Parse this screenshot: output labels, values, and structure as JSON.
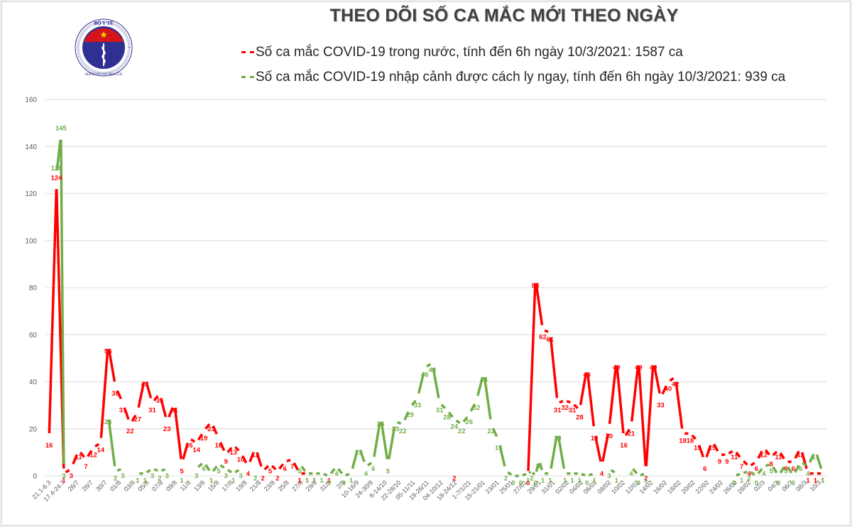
{
  "header": {
    "logo": {
      "top_text": "BỘ Y TẾ",
      "bottom_text": "MINISTRY OF HEALTH"
    },
    "title": "THEO DÕI SỐ CA MẮC MỚI THEO NGÀY"
  },
  "legend": [
    {
      "label": "Số ca mắc COVID-19 trong nước, tính đến 6h ngày 10/3/2021: 1587 ca",
      "color": "#ff0000"
    },
    {
      "label": "Số ca mắc COVID-19 nhập cảnh được cách ly ngay, tính đến 6h ngày 10/3/2021: 939 ca",
      "color": "#70ad47"
    }
  ],
  "chart_data": {
    "type": "line",
    "title": "THEO DÕI SỐ CA MẮC MỚI THEO NGÀY",
    "xlabel": "",
    "ylabel": "",
    "ylim": [
      0,
      160
    ],
    "yticks": [
      0,
      20,
      40,
      60,
      80,
      100,
      120,
      140,
      160
    ],
    "grid": true,
    "legend_position": "top",
    "x_tick_labels": [
      "21.1-6.3",
      "17.4-24.7",
      "26/7",
      "28/7",
      "30/7",
      "01/8",
      "03/8",
      "05/8",
      "07/8",
      "09/8",
      "11/8",
      "13/8",
      "15/8",
      "17/8",
      "19/8",
      "21/8",
      "23/8",
      "25/8",
      "27/8",
      "29/8",
      "31/8",
      "2/9",
      "10-16/9",
      "24-30/9",
      "8-14/10",
      "22-28/10",
      "05-11/11",
      "19-26/11",
      "04-10/12",
      "18-24/12",
      "1-7/1/21",
      "15-21/01",
      "23/01",
      "25/01",
      "27/01",
      "29/01",
      "31/01",
      "02/02",
      "04/02",
      "06/02",
      "08/02",
      "10/02",
      "12/02",
      "14/02",
      "16/02",
      "18/02",
      "20/02",
      "22/02",
      "24/02",
      "26/02",
      "28/02",
      "02/3",
      "04/3",
      "06/3",
      "08/3",
      "10/3"
    ],
    "series": [
      {
        "name": "Số ca mắc COVID-19 trong nước",
        "color": "#ff0000",
        "points": [
          [
            0,
            16
          ],
          [
            1,
            124
          ],
          [
            2,
            1
          ],
          [
            3,
            3
          ],
          [
            4,
            11
          ],
          [
            5,
            7
          ],
          [
            6,
            12
          ],
          [
            7,
            14
          ],
          [
            8,
            56
          ],
          [
            9,
            38
          ],
          [
            10,
            31
          ],
          [
            11,
            22
          ],
          [
            12,
            27
          ],
          [
            13,
            42
          ],
          [
            14,
            31
          ],
          [
            15,
            35
          ],
          [
            16,
            23
          ],
          [
            17,
            31
          ],
          [
            18,
            5
          ],
          [
            19,
            16
          ],
          [
            20,
            14
          ],
          [
            21,
            19
          ],
          [
            22,
            23
          ],
          [
            23,
            16
          ],
          [
            24,
            9
          ],
          [
            25,
            13
          ],
          [
            26,
            10
          ],
          [
            27,
            4
          ],
          [
            28,
            12
          ],
          [
            29,
            2
          ],
          [
            30,
            5
          ],
          [
            31,
            2
          ],
          [
            32,
            6
          ],
          [
            33,
            7
          ],
          [
            34,
            1
          ],
          [
            35,
            1
          ],
          [
            36,
            1
          ],
          [
            38,
            1
          ],
          [
            55,
            2
          ],
          [
            65,
            0
          ],
          [
            66,
            84
          ],
          [
            67,
            62
          ],
          [
            68,
            61
          ],
          [
            69,
            31
          ],
          [
            70,
            32
          ],
          [
            71,
            31
          ],
          [
            72,
            28
          ],
          [
            73,
            46
          ],
          [
            74,
            19
          ],
          [
            75,
            4
          ],
          [
            76,
            20
          ],
          [
            77,
            49
          ],
          [
            78,
            16
          ],
          [
            79,
            21
          ],
          [
            80,
            49
          ],
          [
            81,
            2
          ],
          [
            82,
            49
          ],
          [
            83,
            33
          ],
          [
            84,
            40
          ],
          [
            85,
            42
          ],
          [
            86,
            18
          ],
          [
            87,
            18
          ],
          [
            88,
            15
          ],
          [
            89,
            6
          ],
          [
            90,
            15
          ],
          [
            91,
            9
          ],
          [
            92,
            9
          ],
          [
            93,
            11
          ],
          [
            94,
            7
          ],
          [
            95,
            4
          ],
          [
            96,
            6
          ],
          [
            97,
            12
          ],
          [
            98,
            8
          ],
          [
            99,
            11
          ],
          [
            100,
            6
          ],
          [
            101,
            6
          ],
          [
            102,
            12
          ],
          [
            103,
            1
          ],
          [
            104,
            1
          ],
          [
            105,
            1
          ]
        ]
      },
      {
        "name": "Số ca mắc COVID-19 nhập cảnh được cách ly ngay",
        "color": "#70ad47",
        "points": [
          [
            1,
            128
          ],
          [
            1.6,
            145
          ],
          [
            2,
            3
          ],
          [
            8,
            26
          ],
          [
            9,
            2
          ],
          [
            10,
            3
          ],
          [
            12,
            1
          ],
          [
            13,
            1
          ],
          [
            14,
            3
          ],
          [
            15,
            2
          ],
          [
            16,
            3
          ],
          [
            18,
            1
          ],
          [
            20,
            3
          ],
          [
            21,
            6
          ],
          [
            22,
            1
          ],
          [
            23,
            5
          ],
          [
            24,
            3
          ],
          [
            25,
            1
          ],
          [
            26,
            3
          ],
          [
            28,
            2
          ],
          [
            34,
            5
          ],
          [
            35,
            1
          ],
          [
            36,
            1
          ],
          [
            37,
            1
          ],
          [
            38,
            0
          ],
          [
            39,
            4
          ],
          [
            40,
            0
          ],
          [
            41,
            1
          ],
          [
            42,
            13
          ],
          [
            43,
            4
          ],
          [
            44,
            6
          ],
          [
            45,
            25
          ],
          [
            46,
            5
          ],
          [
            47,
            23
          ],
          [
            48,
            22
          ],
          [
            49,
            29
          ],
          [
            50,
            33
          ],
          [
            51,
            46
          ],
          [
            52,
            48
          ],
          [
            53,
            31
          ],
          [
            54,
            28
          ],
          [
            55,
            24
          ],
          [
            56,
            22
          ],
          [
            57,
            26
          ],
          [
            58,
            32
          ],
          [
            59,
            44
          ],
          [
            60,
            22
          ],
          [
            61,
            15
          ],
          [
            62,
            2
          ],
          [
            63,
            0
          ],
          [
            64,
            0
          ],
          [
            65,
            1
          ],
          [
            65.5,
            2
          ],
          [
            66,
            0
          ],
          [
            66.5,
            7
          ],
          [
            67,
            1
          ],
          [
            68,
            1
          ],
          [
            69,
            19
          ],
          [
            70,
            1
          ],
          [
            71,
            1
          ],
          [
            72,
            1
          ],
          [
            73,
            0
          ],
          [
            74,
            1
          ],
          [
            76,
            3
          ],
          [
            77,
            1
          ],
          [
            79,
            4
          ],
          [
            80,
            0
          ],
          [
            81,
            1
          ],
          [
            93,
            0
          ],
          [
            94,
            1
          ],
          [
            95,
            2
          ],
          [
            96,
            0
          ],
          [
            97,
            4
          ],
          [
            98,
            5
          ],
          [
            99,
            0
          ],
          [
            100,
            5
          ],
          [
            101,
            0
          ],
          [
            102,
            6
          ],
          [
            103,
            4
          ],
          [
            104,
            11
          ],
          [
            105,
            1
          ]
        ]
      }
    ]
  }
}
